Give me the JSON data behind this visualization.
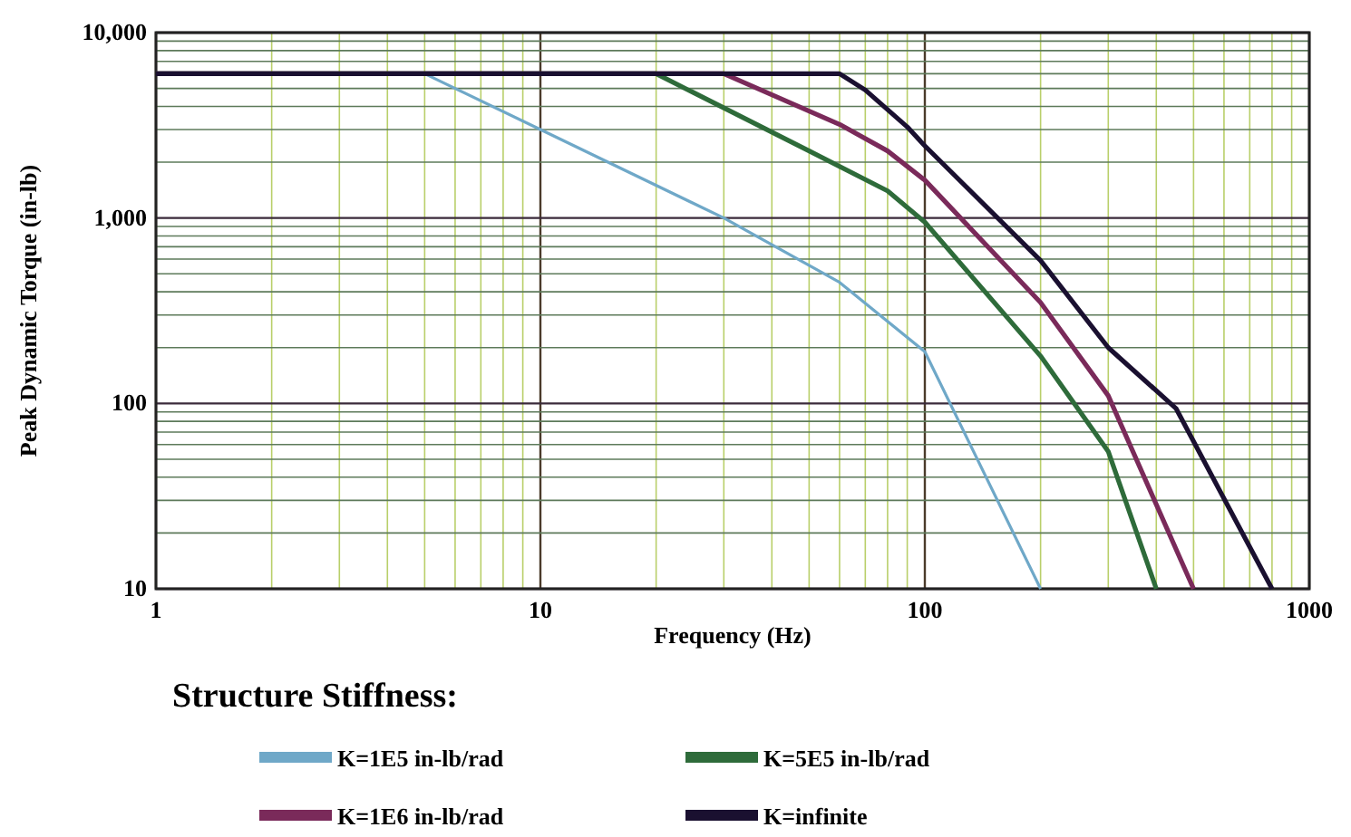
{
  "chart_data": {
    "type": "line",
    "xlabel": "Frequency (Hz)",
    "ylabel": "Peak Dynamic Torque (in-lb)",
    "legend_title": "Structure Stiffness:",
    "log": "xy",
    "grid": true,
    "legend": "bottom",
    "line_style": "solid",
    "marker": "none",
    "xlim": [
      1,
      1000
    ],
    "xticks": [
      1,
      {
        "value": 2,
        "label": null
      },
      {
        "value": 3,
        "label": null
      },
      {
        "value": 4,
        "label": null
      },
      {
        "value": 5,
        "label": null
      },
      {
        "value": 6,
        "label": null
      },
      {
        "value": 7,
        "label": null
      },
      {
        "value": 8,
        "label": null
      },
      {
        "value": 9,
        "label": null
      },
      10,
      {
        "value": 20,
        "label": null
      },
      {
        "value": 30,
        "label": null
      },
      {
        "value": 40,
        "label": null
      },
      {
        "value": 50,
        "label": null
      },
      {
        "value": 60,
        "label": null
      },
      {
        "value": 70,
        "label": null
      },
      {
        "value": 80,
        "label": null
      },
      {
        "value": 90,
        "label": null
      },
      100,
      {
        "value": 200,
        "label": null
      },
      {
        "value": 300,
        "label": null
      },
      {
        "value": 400,
        "label": null
      },
      {
        "value": 500,
        "label": null
      },
      {
        "value": 600,
        "label": null
      },
      {
        "value": 700,
        "label": null
      },
      {
        "value": 800,
        "label": null
      },
      {
        "value": 900,
        "label": null
      },
      1000
    ],
    "ylim": [
      10,
      10000
    ],
    "yticks": [
      10,
      {
        "value": 20,
        "label": null
      },
      {
        "value": 30,
        "label": null
      },
      {
        "value": 40,
        "label": null
      },
      {
        "value": 50,
        "label": null
      },
      {
        "value": 60,
        "label": null
      },
      {
        "value": 70,
        "label": null
      },
      {
        "value": 80,
        "label": null
      },
      {
        "value": 90,
        "label": null
      },
      100,
      {
        "value": 200,
        "label": null
      },
      {
        "value": 300,
        "label": null
      },
      {
        "value": 400,
        "label": null
      },
      {
        "value": 500,
        "label": null
      },
      {
        "value": 600,
        "label": null
      },
      {
        "value": 700,
        "label": null
      },
      {
        "value": 800,
        "label": null
      },
      {
        "value": 900,
        "label": null
      },
      {
        "value": 1000,
        "label": "1,000"
      },
      {
        "value": 2000,
        "label": null
      },
      {
        "value": 3000,
        "label": null
      },
      {
        "value": 4000,
        "label": null
      },
      {
        "value": 5000,
        "label": null
      },
      {
        "value": 6000,
        "label": null
      },
      {
        "value": 7000,
        "label": null
      },
      {
        "value": 8000,
        "label": null
      },
      {
        "value": 9000,
        "label": null
      },
      {
        "value": 10000,
        "label": "10,000"
      }
    ],
    "series": [
      {
        "name": "K=1E5 in-lb/rad",
        "color": "#6fa8c8",
        "x": [
          1,
          5,
          10,
          30,
          60,
          100,
          200
        ],
        "values": [
          6000,
          6000,
          3000,
          1000,
          450,
          190,
          10
        ]
      },
      {
        "name": "K=5E5 in-lb/rad",
        "color": "#2e6b3a",
        "x": [
          1,
          20,
          50,
          80,
          100,
          200,
          300,
          400
        ],
        "values": [
          6000,
          6000,
          2300,
          1400,
          950,
          180,
          55,
          10
        ]
      },
      {
        "name": "K=1E6 in-lb/rad",
        "color": "#7a2a5a",
        "x": [
          1,
          30,
          60,
          80,
          100,
          200,
          300,
          500
        ],
        "values": [
          6000,
          6000,
          3200,
          2300,
          1600,
          350,
          110,
          10
        ]
      },
      {
        "name": "K=infinite",
        "color": "#1a1030",
        "x": [
          1,
          60,
          70,
          90,
          100,
          200,
          300,
          450,
          800
        ],
        "values": [
          6000,
          6000,
          4900,
          3100,
          2450,
          590,
          200,
          94,
          10
        ]
      }
    ]
  }
}
